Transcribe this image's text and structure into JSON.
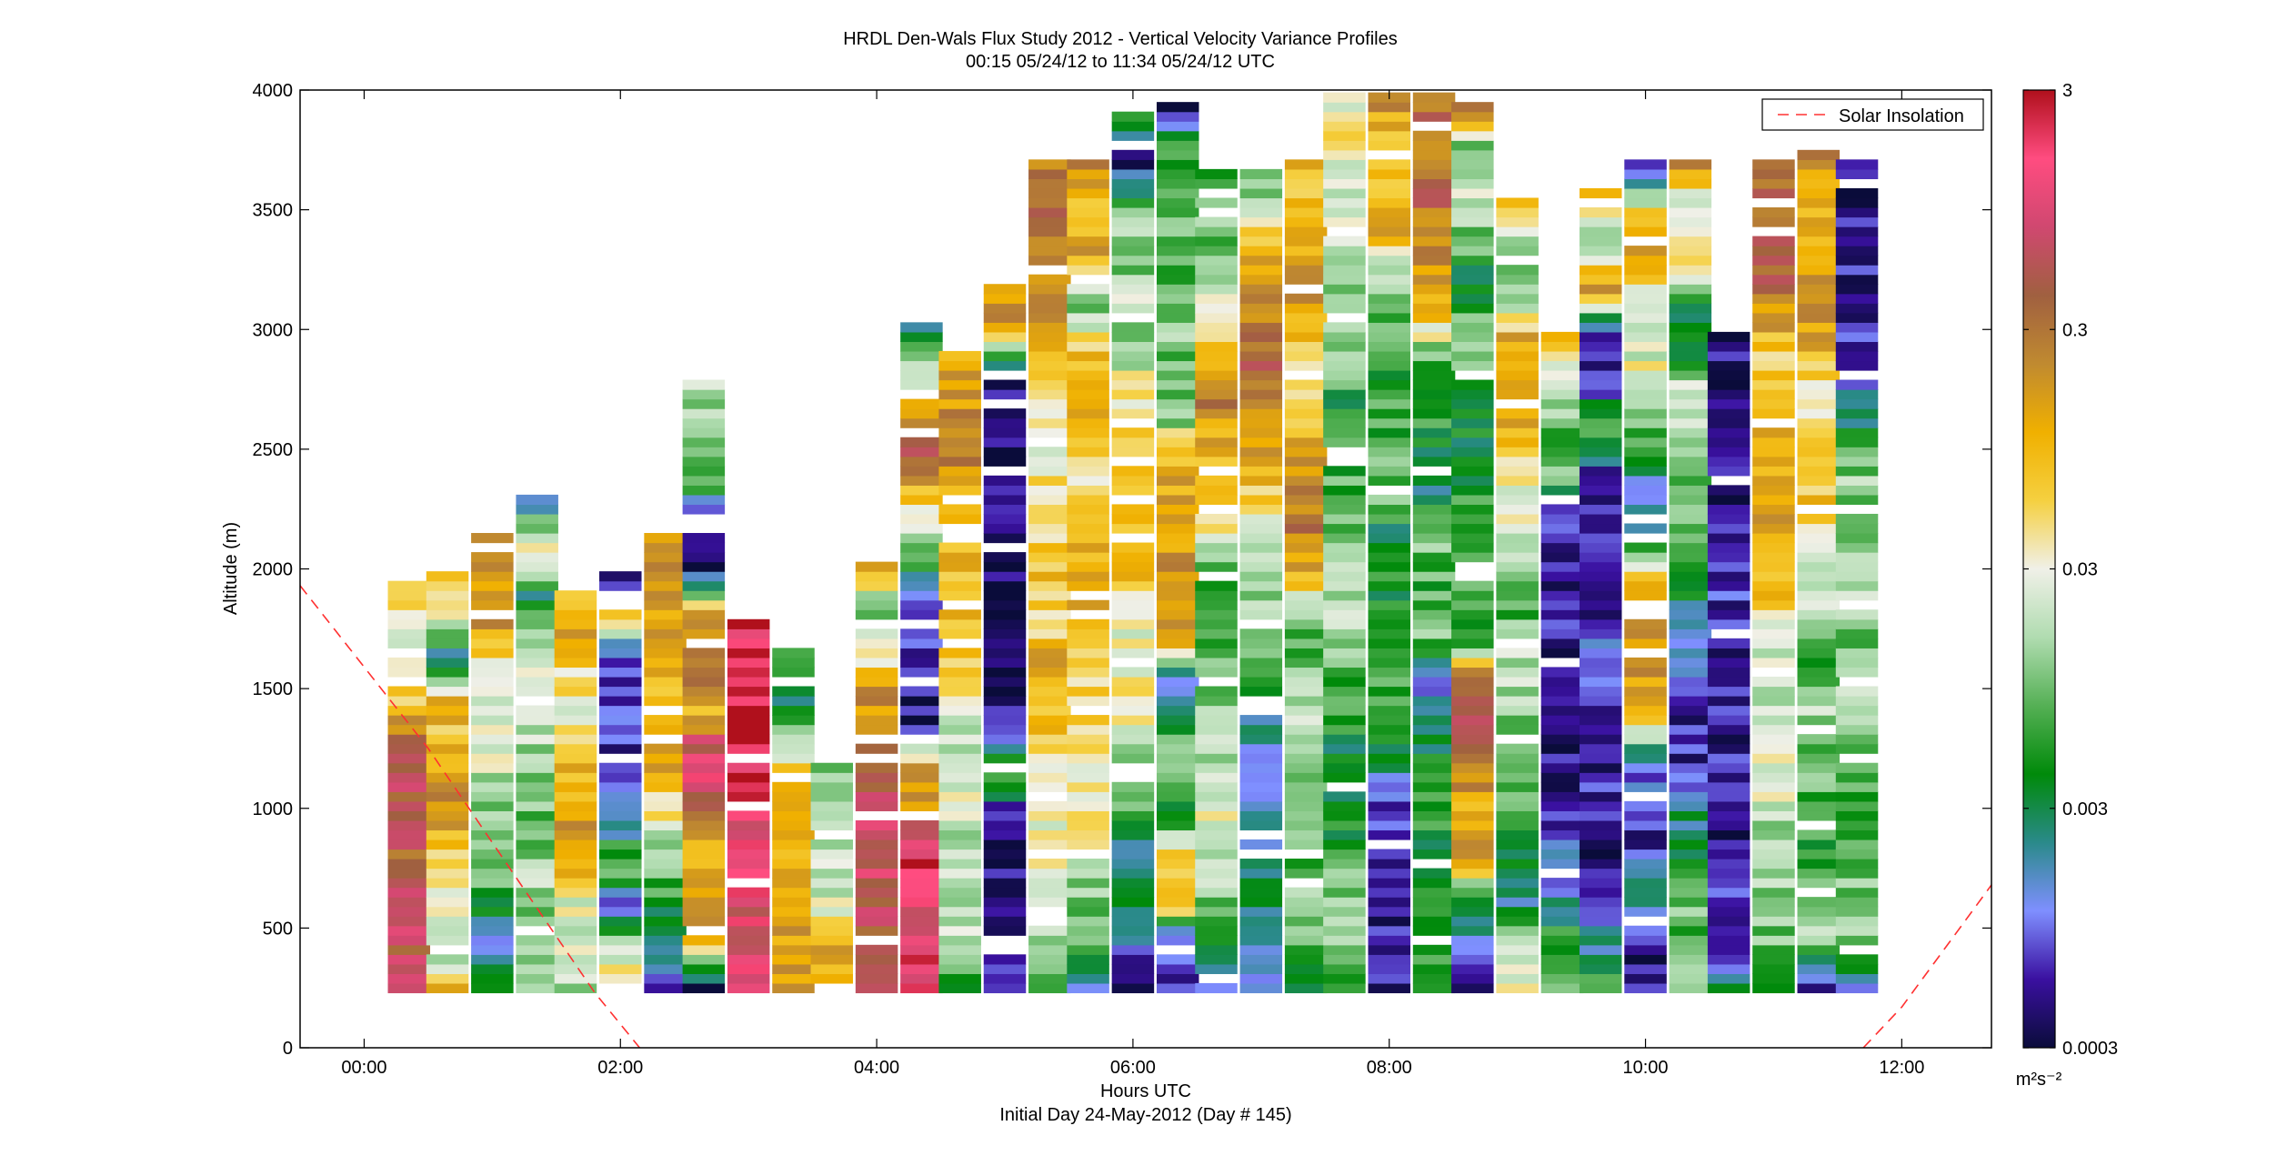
{
  "chart_data": {
    "type": "heatmap",
    "title": "HRDL Den-Wals Flux Study 2012 - Vertical Velocity Variance Profiles",
    "subtitle": "00:15 05/24/12 to 11:34 05/24/12  UTC",
    "xlabel": "Hours UTC",
    "xlabel2": "Initial Day 24-May-2012 (Day # 145)",
    "ylabel": "Altitude (m)",
    "xlim": [
      -0.5,
      12.7
    ],
    "ylim": [
      0,
      4000
    ],
    "x_ticks": [
      0,
      2,
      4,
      6,
      8,
      10,
      12
    ],
    "x_tick_labels": [
      "00:00",
      "02:00",
      "04:00",
      "06:00",
      "08:00",
      "10:00",
      "12:00"
    ],
    "y_ticks": [
      0,
      500,
      1000,
      1500,
      2000,
      2500,
      3000,
      3500,
      4000
    ],
    "y_tick_labels": [
      "0",
      "500",
      "1000",
      "1500",
      "2000",
      "2500",
      "3000",
      "3500",
      "4000"
    ],
    "grid": false,
    "colorbar": {
      "scale": "log",
      "range": [
        0.0003,
        3
      ],
      "ticks": [
        3,
        0.3,
        0.03,
        0.003,
        0.0003
      ],
      "tick_labels": [
        "3",
        "0.3",
        "0.03",
        "0.003",
        "0.0003"
      ],
      "unit": "m²s⁻²",
      "colors": [
        "#0a0c3a",
        "#3a10a0",
        "#7f8fff",
        "#2a8a8a",
        "#008a0a",
        "#55b055",
        "#b0dcb0",
        "#f0f0e8",
        "#f5d040",
        "#f0b000",
        "#c08a30",
        "#a06040",
        "#d04870",
        "#ff4c80",
        "#b0101c"
      ]
    },
    "legend": {
      "position": "top-right",
      "entries": [
        "Solar Insolation"
      ]
    },
    "profile_bottom_m": 230,
    "profiles": [
      {
        "time": 0.35,
        "top": 1960,
        "log_var": [
          -0.3,
          -0.2,
          -0.2,
          -0.3,
          -0.4,
          -0.3,
          -0.3,
          -1.2,
          -1.5,
          -1.6,
          -1.3
        ]
      },
      {
        "time": 0.65,
        "top": 2020,
        "log_var": [
          -1.0,
          -2.0,
          -1.4,
          -1.3,
          -0.9,
          -0.7,
          -1.1,
          -1.0,
          -2.7,
          -1.5,
          -0.9
        ]
      },
      {
        "time": 1.0,
        "top": 2180,
        "log_var": [
          -2.2,
          -2.8,
          -2.2,
          -1.8,
          -1.9,
          -1.7,
          -1.5,
          -1.6,
          -0.8,
          -0.9,
          -0.7
        ]
      },
      {
        "time": 1.35,
        "top": 2320,
        "log_var": [
          -1.6,
          -2.0,
          -1.8,
          -2.0,
          -2.0,
          -1.8,
          -1.6,
          -1.7,
          -2.6,
          -1.2,
          -2.9
        ]
      },
      {
        "time": 1.65,
        "top": 1930,
        "log_var": [
          -1.8,
          -1.7,
          -1.6,
          -0.8,
          -0.9,
          -1.0,
          -1.5,
          -1.4,
          -0.9,
          -1.0
        ]
      },
      {
        "time": 2.0,
        "top": 2020,
        "log_var": [
          -1.1,
          -1.8,
          -3.0,
          -2.0,
          -2.8,
          -3.3,
          -3.2,
          -3.1,
          -3.3,
          -1.2,
          -3.4
        ]
      },
      {
        "time": 2.35,
        "top": 2170,
        "log_var": [
          -3.2,
          -2.7,
          -2.2,
          -1.9,
          -1.4,
          -0.9,
          -1.0,
          -1.0,
          -0.9,
          -0.9,
          -0.7
        ]
      },
      {
        "time": 2.65,
        "top": 2800,
        "log_var": [
          -3.3,
          -0.8,
          -0.9,
          -1.0,
          -0.2,
          0.1,
          -1.0,
          -0.4,
          -0.7,
          -3.4,
          -3.2,
          -2.2,
          -1.8,
          -1.8
        ]
      },
      {
        "time": 3.0,
        "top": 1810,
        "log_var": [
          0.2,
          0.0,
          0.0,
          0.0,
          0.1,
          0.2,
          0.4,
          0.5,
          0.3,
          0.3
        ]
      },
      {
        "time": 3.35,
        "top": 1700,
        "log_var": [
          -0.7,
          -0.8,
          -0.9,
          -0.9,
          -1.0,
          -0.9,
          -2.0,
          -2.5,
          -1.9
        ]
      },
      {
        "time": 3.65,
        "top": 1220,
        "log_var": [
          -0.9,
          -1.0,
          -1.7,
          -1.8,
          -1.9,
          -1.9
        ]
      },
      {
        "time": 4.0,
        "top": 2030,
        "log_var": [
          -0.4,
          -0.3,
          -0.2,
          -0.2,
          -0.2,
          -0.3,
          -0.6,
          -0.8,
          -1.6,
          -2.0,
          -0.9
        ]
      },
      {
        "time": 4.35,
        "top": 3050,
        "log_var": [
          0.2,
          0.1,
          0.1,
          0.3,
          -0.7,
          -0.8,
          -3.4,
          -3.3,
          -3.2,
          -2.7,
          -2.0,
          -1.2,
          -0.4,
          -0.8,
          -1.7,
          -2.5
        ]
      },
      {
        "time": 4.65,
        "top": 2920,
        "log_var": [
          -2.2,
          -1.8,
          -1.7,
          -1.8,
          -1.6,
          -1.6,
          -1.7,
          -1.3,
          -1.0,
          -1.2,
          -0.9,
          -0.9,
          -0.6,
          -0.8,
          -0.9
        ]
      },
      {
        "time": 5.0,
        "top": 3200,
        "log_var": [
          -3.3,
          -3.3,
          -3.2,
          -3.4,
          -3.3,
          -2.0,
          -3.3,
          -3.4,
          -3.4,
          -3.4,
          -3.4,
          -3.4,
          -3.4,
          -3.3,
          -3.3,
          -0.8,
          -0.7
        ]
      },
      {
        "time": 5.35,
        "top": 3720,
        "log_var": [
          -2.0,
          -1.8,
          -1.8,
          -1.4,
          -1.5,
          -1.3,
          -1.0,
          -0.8,
          -1.4,
          -1.0,
          -1.3,
          -1.4,
          -1.5,
          -1.2,
          -1.0,
          -0.7,
          -0.6,
          -0.5,
          -0.6
        ]
      },
      {
        "time": 5.65,
        "top": 3710,
        "log_var": [
          -3.0,
          -2.0,
          -2.0,
          -1.5,
          -1.4,
          -1.4,
          -1.2,
          -1.2,
          -1.0,
          -1.0,
          -1.1,
          -1.3,
          -1.0,
          -0.8,
          -1.2,
          -2.2,
          -0.9,
          -1.0,
          -0.7
        ]
      },
      {
        "time": 6.0,
        "top": 3930,
        "log_var": [
          -3.3,
          -3.0,
          -2.6,
          -2.6,
          -2.0,
          -1.8,
          -1.4,
          -1.6,
          -1.5,
          -1.1,
          -1.0,
          -1.2,
          -1.2,
          -1.4,
          -1.9,
          -1.7,
          -2.0,
          -1.9,
          -3.3,
          -2.0
        ]
      },
      {
        "time": 6.35,
        "top": 3980,
        "log_var": [
          -3.0,
          -3.3,
          -0.9,
          -1.1,
          -2.6,
          -2.0,
          -2.2,
          -3.1,
          -0.6,
          -0.7,
          -0.8,
          -0.9,
          -1.0,
          -2.0,
          -2.1,
          -1.9,
          -2.1,
          -2.0,
          -2.0,
          -2.2,
          -3.3
        ]
      },
      {
        "time": 6.65,
        "top": 3680,
        "log_var": [
          -2.8,
          -2.5,
          -2.0,
          -1.6,
          -1.5,
          -1.7,
          -1.9,
          -2.1,
          -2.3,
          -2.4,
          -1.6,
          -0.9,
          -1.0,
          -0.6,
          -1.1,
          -1.5,
          -2.0,
          -2.0,
          -2.2
        ]
      },
      {
        "time": 7.0,
        "top": 3680,
        "log_var": [
          -3.0,
          -2.7,
          -2.5,
          -2.6,
          -2.8,
          -2.7,
          -2.8,
          -2.2,
          -1.8,
          -2.0,
          -1.5,
          -1.2,
          -0.7,
          -0.6,
          -0.4,
          -0.7,
          -0.8,
          -1.5,
          -2.2
        ]
      },
      {
        "time": 7.35,
        "top": 3740,
        "log_var": [
          -2.4,
          -2.0,
          -1.9,
          -2.2,
          -1.8,
          -1.9,
          -1.8,
          -2.0,
          -2.1,
          -1.0,
          -0.5,
          -0.7,
          -0.9,
          -1.3,
          -1.1,
          -0.7,
          -1.0,
          -1.2,
          -0.9
        ]
      },
      {
        "time": 7.65,
        "top": 4000,
        "log_var": [
          -2.3,
          -1.9,
          -2.0,
          -2.1,
          -2.5,
          -2.6,
          -2.3,
          -2.2,
          -1.9,
          -1.8,
          -2.0,
          -2.1,
          -2.2,
          -2.4,
          -2.0,
          -1.8,
          -2.0,
          -1.4,
          -1.6,
          -1.4,
          -1.5
        ]
      },
      {
        "time": 8.0,
        "top": 3990,
        "log_var": [
          -3.3,
          -3.2,
          -3.3,
          -3.3,
          -3.2,
          -2.5,
          -2.1,
          -2.2,
          -2.4,
          -2.3,
          -2.6,
          -2.0,
          -2.1,
          -2.2,
          -2.3,
          -2.1,
          -1.8,
          -0.9,
          -1.0,
          -1.1,
          -0.7
        ]
      },
      {
        "time": 8.35,
        "top": 4000,
        "log_var": [
          -2.1,
          -2.4,
          -2.3,
          -2.4,
          -2.2,
          -2.3,
          -2.6,
          -3.1,
          -1.9,
          -2.2,
          -2.0,
          -2.5,
          -2.6,
          -2.1,
          -2.3,
          -1.2,
          -0.9,
          -0.6,
          -0.4,
          -0.6,
          -0.5
        ]
      },
      {
        "time": 8.65,
        "top": 3960,
        "log_var": [
          -3.3,
          -2.9,
          -2.4,
          -0.6,
          -0.9,
          -0.6,
          -0.3,
          -0.4,
          -2.4,
          -2.0,
          -2.1,
          -2.2,
          -2.4,
          -2.5,
          -2.0,
          -2.0,
          -2.5,
          -2.0,
          -1.6,
          -2.2,
          -0.4
        ]
      },
      {
        "time": 9.0,
        "top": 3580,
        "log_var": [
          -1.6,
          -1.8,
          -2.8,
          -2.5,
          -2.0,
          -2.2,
          -1.9,
          -1.7,
          -2.1,
          -2.0,
          -1.6,
          -1.5,
          -1.0,
          -0.9,
          -0.8,
          -2.0,
          -1.9,
          -1.1
        ]
      },
      {
        "time": 9.35,
        "top": 3000,
        "log_var": [
          -2.0,
          -2.2,
          -2.9,
          -3.0,
          -3.4,
          -3.3,
          -3.4,
          -3.3,
          -3.3,
          -3.2,
          -3.3,
          -2.0,
          -2.2,
          -1.6,
          -1.2
        ]
      },
      {
        "time": 9.65,
        "top": 3600,
        "log_var": [
          -2.0,
          -2.8,
          -3.3,
          -3.3,
          -3.3,
          -3.2,
          -3.3,
          -2.9,
          -3.4,
          -3.3,
          -3.3,
          -3.3,
          -2.0,
          -3.3,
          -3.2,
          -0.7,
          -2.0,
          -0.8
        ]
      },
      {
        "time": 10.0,
        "top": 3730,
        "log_var": [
          -3.3,
          -3.3,
          -2.4,
          -3.3,
          -3.1,
          -2.9,
          -0.8,
          -0.8,
          -0.9,
          -1.0,
          -2.8,
          -2.9,
          -2.2,
          -1.5,
          -1.6,
          -1.7,
          -0.6,
          -1.3,
          -3.3
        ]
      },
      {
        "time": 10.35,
        "top": 3730,
        "log_var": [
          -1.8,
          -2.2,
          -2.0,
          -2.4,
          -2.7,
          -3.2,
          -3.3,
          -2.7,
          -2.9,
          -2.2,
          -2.0,
          -2.2,
          -1.7,
          -1.5,
          -2.5,
          -2.4,
          -1.0,
          -1.8,
          -0.8
        ]
      },
      {
        "time": 10.65,
        "top": 3050,
        "log_var": [
          -2.5,
          -3.3,
          -3.1,
          -3.3,
          -3.3,
          -3.3,
          -3.2,
          -3.1,
          -3.3,
          -3.2,
          -3.3,
          -3.3,
          -3.3,
          -3.3,
          -3.3,
          -3.3
        ]
      },
      {
        "time": 11.0,
        "top": 3720,
        "log_var": [
          -2.3,
          -2.0,
          -1.9,
          -1.9,
          -1.7,
          -1.6,
          -1.7,
          -1.8,
          -1.4,
          -1.0,
          -0.8,
          -0.9,
          -0.9,
          -1.0,
          -1.2,
          -0.6,
          -0.3,
          -0.5,
          -0.6
        ]
      },
      {
        "time": 11.35,
        "top": 3770,
        "log_var": [
          -3.3,
          -1.8,
          -1.9,
          -2.3,
          -2.1,
          -2.0,
          -1.8,
          -2.2,
          -1.6,
          -1.8,
          -1.2,
          -1.1,
          -1.3,
          -1.4,
          -0.9,
          -0.8,
          -1.1,
          -0.9,
          -0.7
        ]
      },
      {
        "time": 11.65,
        "top": 3740,
        "log_var": [
          -3.0,
          -1.9,
          -2.0,
          -2.1,
          -2.3,
          -2.0,
          -1.8,
          -1.9,
          -2.0,
          -1.7,
          -2.1,
          -1.9,
          -2.2,
          -2.9,
          -3.2,
          -3.3,
          -3.3,
          -3.3,
          -3.3
        ]
      }
    ],
    "series": [
      {
        "name": "Solar Insolation",
        "style": "dashed",
        "color": "#ff3030",
        "points": [
          [
            -0.5,
            1930
          ],
          [
            0.5,
            1250
          ],
          [
            1.2,
            700
          ],
          [
            1.8,
            230
          ],
          [
            2.15,
            0
          ],
          [
            11.7,
            0
          ],
          [
            12.0,
            170
          ],
          [
            12.7,
            680
          ]
        ]
      }
    ]
  }
}
